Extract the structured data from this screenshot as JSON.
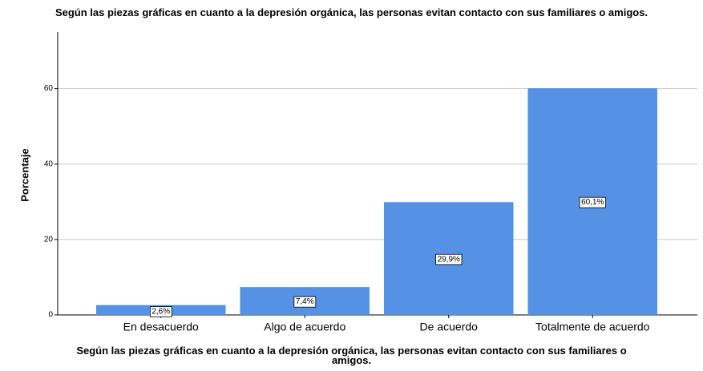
{
  "chart_data": {
    "type": "bar",
    "title": "Según las piezas gráficas en cuanto a la depresión orgánica, las personas evitan contacto con sus familiares o amigos.",
    "x_label": "Según las piezas gráficas en cuanto a la depresión orgánica, las personas evitan contacto con sus familiares o amigos.",
    "y_label": "Porcentaje",
    "categories": [
      "En desacuerdo",
      "Algo de acuerdo",
      "De acuerdo",
      "Totalmente de acuerdo"
    ],
    "values": [
      2.6,
      7.4,
      29.9,
      60.1
    ],
    "value_labels": [
      "2,6%",
      "7,4%",
      "29,9%",
      "60,1%"
    ],
    "color": "#5591e5",
    "ylim": [
      0,
      75
    ],
    "yticks": [
      0,
      20,
      40,
      60
    ],
    "grid": true
  }
}
